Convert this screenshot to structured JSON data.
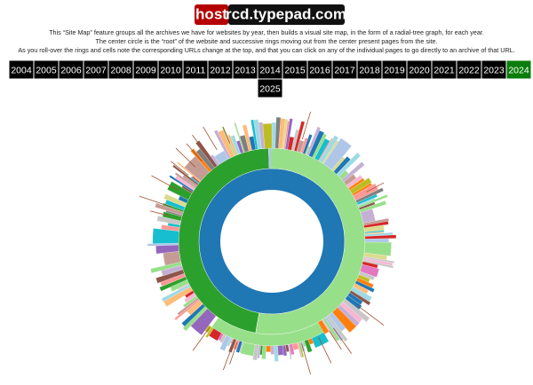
{
  "header": {
    "host": "host",
    "site": "rcd.typepad.com"
  },
  "description": [
    "This “Site Map” feature groups all the archives we have for websites by year, then builds a visual site map, in the form of a radial-tree graph, for each year.",
    "The center circle is the “root” of the website and successive rings moving out from the center present pages from the site.",
    "As you roll-over the rings and cells note the corresponding URLs change at the top, and that you can click on any of the individual pages to go directly to an archive of that URL."
  ],
  "years": [
    "2004",
    "2005",
    "2006",
    "2007",
    "2008",
    "2009",
    "2010",
    "2011",
    "2012",
    "2013",
    "2014",
    "2015",
    "2016",
    "2017",
    "2018",
    "2019",
    "2020",
    "2021",
    "2022",
    "2023",
    "2024",
    "2025"
  ],
  "selected_year": "2024"
}
